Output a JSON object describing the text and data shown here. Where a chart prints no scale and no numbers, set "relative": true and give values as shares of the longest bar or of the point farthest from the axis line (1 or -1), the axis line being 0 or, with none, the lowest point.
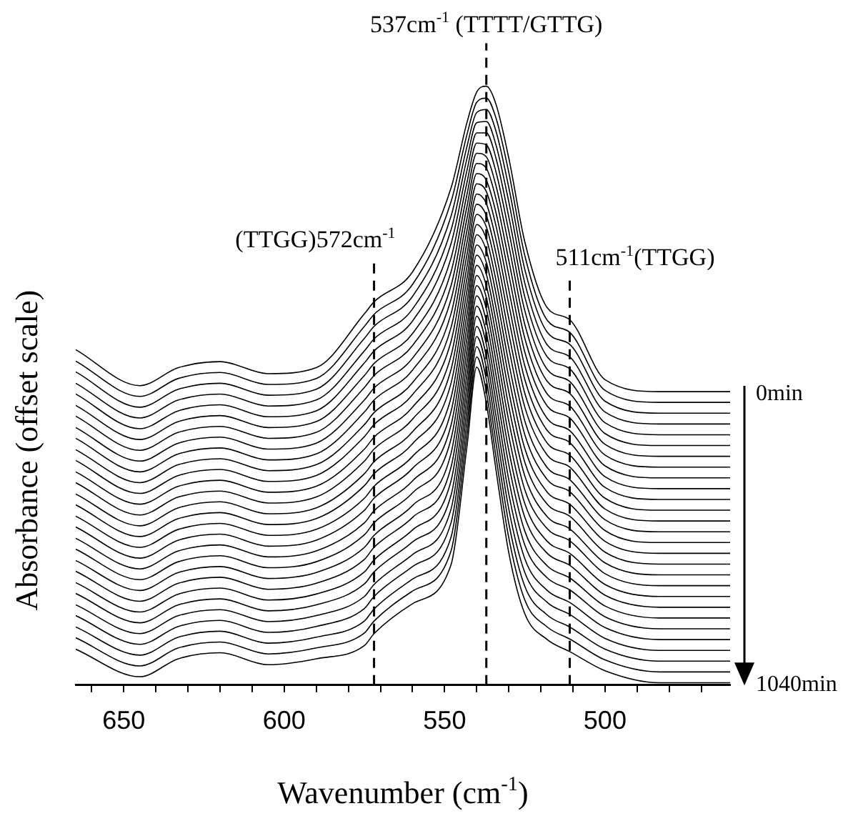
{
  "chart_data": {
    "type": "line",
    "relative": true,
    "xlabel": "Wavenumber (cm$^{-1}$)",
    "ylabel": "Absorbance (offset scale)",
    "x": [
      665,
      645,
      633,
      620,
      605,
      590,
      575,
      572,
      560,
      548,
      543,
      540,
      537,
      534,
      530,
      525,
      518,
      511,
      500,
      483,
      461
    ],
    "xlim": [
      665,
      461
    ],
    "xticks": [
      {
        "value": 660,
        "label": null
      },
      650,
      {
        "value": 640,
        "label": null
      },
      {
        "value": 630,
        "label": null
      },
      {
        "value": 620,
        "label": null
      },
      {
        "value": 610,
        "label": null
      },
      600,
      {
        "value": 590,
        "label": null
      },
      {
        "value": 580,
        "label": null
      },
      {
        "value": 570,
        "label": null
      },
      {
        "value": 560,
        "label": null
      },
      550,
      {
        "value": 540,
        "label": null
      },
      {
        "value": 530,
        "label": null
      },
      {
        "value": 520,
        "label": null
      },
      {
        "value": 510,
        "label": null
      },
      500,
      {
        "value": 490,
        "label": null
      },
      {
        "value": 480,
        "label": null
      },
      {
        "value": 470,
        "label": null
      }
    ],
    "grid": false,
    "legend": false,
    "marker": "none",
    "ref_lines": [
      {
        "axis": "x",
        "value": 572,
        "label": "(TTGG)572cm$^{-1}$",
        "color": "#000000",
        "line_style": "dashed"
      },
      {
        "axis": "x",
        "value": 537,
        "label": "537cm$^{-1}$ (TTTT/GTTG)",
        "color": "#000000",
        "line_style": "dashed"
      },
      {
        "axis": "x",
        "value": 511,
        "label": "511cm$^{-1}$(TTGG)",
        "color": "#000000",
        "line_style": "dashed"
      }
    ],
    "annotations": [
      "0min",
      "1040min"
    ],
    "series": [
      {
        "color": "#000000",
        "values": [
          0.56,
          0.5,
          0.53,
          0.54,
          0.52,
          0.53,
          0.62,
          0.64,
          0.69,
          0.83,
          0.94,
          0.99,
          1,
          0.97,
          0.88,
          0.74,
          0.63,
          0.61,
          0.51,
          0.49,
          0.49
        ]
      },
      {
        "color": "#000000",
        "values": [
          0.541,
          0.482,
          0.512,
          0.522,
          0.502,
          0.512,
          0.599,
          0.619,
          0.669,
          0.807,
          0.92,
          0.973,
          0.98,
          0.947,
          0.856,
          0.717,
          0.609,
          0.589,
          0.492,
          0.472,
          0.472
        ]
      },
      {
        "color": "#000000",
        "values": [
          0.523,
          0.464,
          0.494,
          0.504,
          0.484,
          0.494,
          0.579,
          0.599,
          0.649,
          0.783,
          0.9,
          0.956,
          0.961,
          0.925,
          0.831,
          0.694,
          0.589,
          0.569,
          0.474,
          0.454,
          0.454
        ]
      },
      {
        "color": "#000000",
        "values": [
          0.504,
          0.446,
          0.476,
          0.486,
          0.466,
          0.476,
          0.558,
          0.578,
          0.628,
          0.76,
          0.88,
          0.939,
          0.941,
          0.902,
          0.807,
          0.671,
          0.568,
          0.548,
          0.456,
          0.436,
          0.436
        ]
      },
      {
        "color": "#000000",
        "values": [
          0.486,
          0.428,
          0.458,
          0.468,
          0.448,
          0.458,
          0.538,
          0.558,
          0.608,
          0.737,
          0.86,
          0.922,
          0.922,
          0.88,
          0.782,
          0.648,
          0.548,
          0.528,
          0.438,
          0.418,
          0.418
        ]
      },
      {
        "color": "#000000",
        "values": [
          0.467,
          0.41,
          0.44,
          0.45,
          0.43,
          0.44,
          0.517,
          0.537,
          0.587,
          0.713,
          0.84,
          0.905,
          0.902,
          0.857,
          0.758,
          0.625,
          0.527,
          0.507,
          0.42,
          0.4,
          0.4
        ]
      },
      {
        "color": "#000000",
        "values": [
          0.449,
          0.392,
          0.422,
          0.432,
          0.412,
          0.422,
          0.497,
          0.517,
          0.567,
          0.69,
          0.82,
          0.888,
          0.882,
          0.834,
          0.734,
          0.602,
          0.507,
          0.487,
          0.402,
          0.382,
          0.382
        ]
      },
      {
        "color": "#000000",
        "values": [
          0.43,
          0.374,
          0.404,
          0.414,
          0.394,
          0.404,
          0.476,
          0.496,
          0.546,
          0.667,
          0.8,
          0.871,
          0.863,
          0.812,
          0.709,
          0.579,
          0.486,
          0.466,
          0.384,
          0.364,
          0.364
        ]
      },
      {
        "color": "#000000",
        "values": [
          0.412,
          0.356,
          0.386,
          0.396,
          0.376,
          0.386,
          0.456,
          0.476,
          0.526,
          0.644,
          0.78,
          0.854,
          0.843,
          0.789,
          0.685,
          0.556,
          0.466,
          0.446,
          0.366,
          0.346,
          0.346
        ]
      },
      {
        "color": "#000000",
        "values": [
          0.393,
          0.338,
          0.368,
          0.378,
          0.358,
          0.368,
          0.435,
          0.455,
          0.505,
          0.62,
          0.76,
          0.837,
          0.824,
          0.767,
          0.66,
          0.533,
          0.445,
          0.425,
          0.348,
          0.328,
          0.328
        ]
      },
      {
        "color": "#000000",
        "values": [
          0.375,
          0.32,
          0.35,
          0.36,
          0.34,
          0.35,
          0.415,
          0.435,
          0.485,
          0.597,
          0.74,
          0.82,
          0.804,
          0.744,
          0.636,
          0.51,
          0.425,
          0.405,
          0.33,
          0.31,
          0.31
        ]
      },
      {
        "color": "#000000",
        "values": [
          0.356,
          0.302,
          0.332,
          0.342,
          0.322,
          0.332,
          0.394,
          0.414,
          0.464,
          0.574,
          0.72,
          0.803,
          0.784,
          0.721,
          0.612,
          0.487,
          0.404,
          0.384,
          0.312,
          0.292,
          0.292
        ]
      },
      {
        "color": "#000000",
        "values": [
          0.338,
          0.284,
          0.314,
          0.324,
          0.304,
          0.314,
          0.374,
          0.394,
          0.444,
          0.55,
          0.7,
          0.786,
          0.765,
          0.699,
          0.587,
          0.464,
          0.384,
          0.364,
          0.294,
          0.274,
          0.274
        ]
      },
      {
        "color": "#000000",
        "values": [
          0.319,
          0.266,
          0.296,
          0.306,
          0.286,
          0.296,
          0.353,
          0.373,
          0.423,
          0.527,
          0.68,
          0.769,
          0.745,
          0.676,
          0.563,
          0.441,
          0.363,
          0.343,
          0.276,
          0.256,
          0.256
        ]
      },
      {
        "color": "#000000",
        "values": [
          0.301,
          0.248,
          0.278,
          0.288,
          0.268,
          0.278,
          0.333,
          0.353,
          0.403,
          0.504,
          0.66,
          0.752,
          0.726,
          0.654,
          0.538,
          0.418,
          0.343,
          0.323,
          0.258,
          0.238,
          0.238
        ]
      },
      {
        "color": "#000000",
        "values": [
          0.282,
          0.23,
          0.26,
          0.27,
          0.25,
          0.26,
          0.312,
          0.332,
          0.382,
          0.48,
          0.64,
          0.735,
          0.706,
          0.631,
          0.514,
          0.395,
          0.322,
          0.302,
          0.24,
          0.22,
          0.22
        ]
      },
      {
        "color": "#000000",
        "values": [
          0.264,
          0.212,
          0.242,
          0.252,
          0.232,
          0.242,
          0.292,
          0.312,
          0.362,
          0.457,
          0.62,
          0.718,
          0.686,
          0.608,
          0.49,
          0.372,
          0.302,
          0.282,
          0.222,
          0.202,
          0.202
        ]
      },
      {
        "color": "#000000",
        "values": [
          0.245,
          0.194,
          0.224,
          0.234,
          0.214,
          0.224,
          0.271,
          0.291,
          0.341,
          0.434,
          0.6,
          0.701,
          0.667,
          0.586,
          0.465,
          0.349,
          0.281,
          0.261,
          0.204,
          0.184,
          0.184
        ]
      },
      {
        "color": "#000000",
        "values": [
          0.227,
          0.176,
          0.206,
          0.216,
          0.196,
          0.206,
          0.251,
          0.271,
          0.321,
          0.411,
          0.58,
          0.684,
          0.647,
          0.563,
          0.441,
          0.326,
          0.261,
          0.241,
          0.186,
          0.166,
          0.166
        ]
      },
      {
        "color": "#000000",
        "values": [
          0.208,
          0.158,
          0.188,
          0.198,
          0.178,
          0.188,
          0.23,
          0.25,
          0.3,
          0.387,
          0.56,
          0.667,
          0.628,
          0.541,
          0.416,
          0.303,
          0.24,
          0.22,
          0.168,
          0.148,
          0.148
        ]
      },
      {
        "color": "#000000",
        "values": [
          0.19,
          0.14,
          0.17,
          0.18,
          0.16,
          0.17,
          0.21,
          0.23,
          0.28,
          0.364,
          0.54,
          0.65,
          0.608,
          0.518,
          0.392,
          0.28,
          0.22,
          0.2,
          0.15,
          0.13,
          0.13
        ]
      },
      {
        "color": "#000000",
        "values": [
          0.171,
          0.122,
          0.152,
          0.162,
          0.142,
          0.152,
          0.189,
          0.209,
          0.259,
          0.341,
          0.52,
          0.633,
          0.588,
          0.495,
          0.368,
          0.257,
          0.199,
          0.179,
          0.132,
          0.112,
          0.112
        ]
      },
      {
        "color": "#000000",
        "values": [
          0.153,
          0.104,
          0.134,
          0.144,
          0.124,
          0.134,
          0.169,
          0.189,
          0.239,
          0.317,
          0.5,
          0.616,
          0.569,
          0.473,
          0.343,
          0.234,
          0.179,
          0.159,
          0.114,
          0.094,
          0.094
        ]
      },
      {
        "color": "#000000",
        "values": [
          0.134,
          0.086,
          0.116,
          0.126,
          0.106,
          0.116,
          0.148,
          0.168,
          0.218,
          0.294,
          0.48,
          0.599,
          0.549,
          0.45,
          0.319,
          0.211,
          0.158,
          0.138,
          0.096,
          0.076,
          0.076
        ]
      },
      {
        "color": "#000000",
        "values": [
          0.116,
          0.068,
          0.098,
          0.108,
          0.088,
          0.098,
          0.128,
          0.148,
          0.198,
          0.271,
          0.46,
          0.582,
          0.53,
          0.428,
          0.294,
          0.188,
          0.138,
          0.118,
          0.078,
          0.058,
          0.058
        ]
      },
      {
        "color": "#000000",
        "values": [
          0.097,
          0.05,
          0.08,
          0.09,
          0.07,
          0.08,
          0.107,
          0.127,
          0.177,
          0.247,
          0.44,
          0.565,
          0.51,
          0.405,
          0.27,
          0.165,
          0.117,
          0.097,
          0.06,
          0.04,
          0.04
        ]
      },
      {
        "color": "#000000",
        "values": [
          0.079,
          0.032,
          0.062,
          0.072,
          0.052,
          0.062,
          0.087,
          0.107,
          0.157,
          0.224,
          0.42,
          0.548,
          0.49,
          0.382,
          0.246,
          0.142,
          0.097,
          0.077,
          0.042,
          0.022,
          0.022
        ]
      },
      {
        "color": "#000000",
        "values": [
          0.06,
          0.014,
          0.044,
          0.054,
          0.034,
          0.044,
          0.066,
          0.086,
          0.136,
          0.201,
          0.4,
          0.531,
          0.471,
          0.36,
          0.221,
          0.119,
          0.076,
          0.056,
          0.024,
          0.004,
          0.004
        ]
      }
    ]
  }
}
